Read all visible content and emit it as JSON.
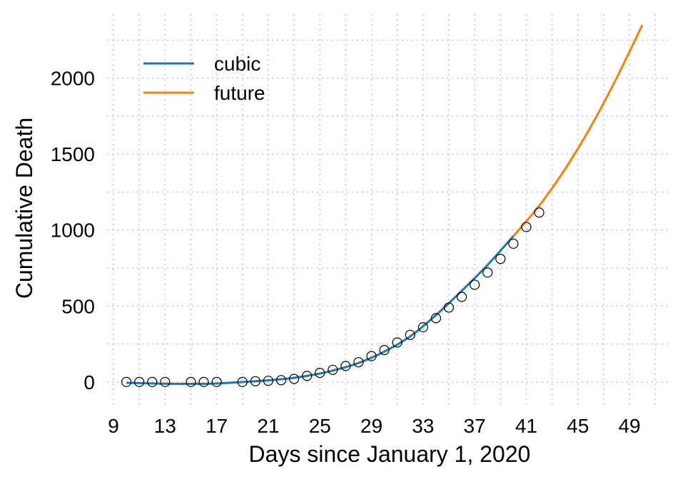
{
  "chart_data": {
    "type": "line",
    "xlabel": "Days since January 1, 2020",
    "ylabel": "Cumulative Death",
    "x_ticks": [
      9,
      13,
      17,
      21,
      25,
      29,
      33,
      37,
      41,
      45,
      49
    ],
    "y_ticks": [
      0,
      500,
      1000,
      1500,
      2000
    ],
    "xlim": [
      8.5,
      52.2
    ],
    "ylim": [
      -160,
      2420
    ],
    "grid": true,
    "legend_position": "top-left",
    "colors": {
      "cubic": "#1f77b4",
      "future": "#ff7f0e",
      "observed": "#000000"
    },
    "series": [
      {
        "name": "cubic",
        "x": [
          10,
          12,
          14,
          16,
          17,
          18,
          20,
          22,
          24,
          26,
          28,
          30,
          32,
          34,
          36,
          38,
          40
        ],
        "y": [
          -5,
          -10,
          -12,
          -12,
          -10,
          -5,
          5,
          18,
          40,
          75,
          125,
          200,
          300,
          440,
          600,
          770,
          960
        ]
      },
      {
        "name": "future",
        "x": [
          40,
          42,
          44,
          46,
          48,
          50
        ],
        "y": [
          960,
          1160,
          1400,
          1680,
          2000,
          2350
        ]
      }
    ],
    "observed": {
      "x": [
        10,
        11,
        12,
        13,
        15,
        16,
        17,
        19,
        20,
        21,
        22,
        23,
        24,
        25,
        26,
        27,
        28,
        29,
        30,
        31,
        32,
        33,
        34,
        35,
        36,
        37,
        38,
        39,
        40,
        41,
        42
      ],
      "y": [
        0,
        0,
        0,
        0,
        0,
        0,
        0,
        0,
        5,
        8,
        12,
        20,
        40,
        60,
        80,
        105,
        130,
        170,
        210,
        260,
        310,
        360,
        420,
        490,
        560,
        640,
        720,
        810,
        910,
        1020,
        1115
      ]
    }
  }
}
